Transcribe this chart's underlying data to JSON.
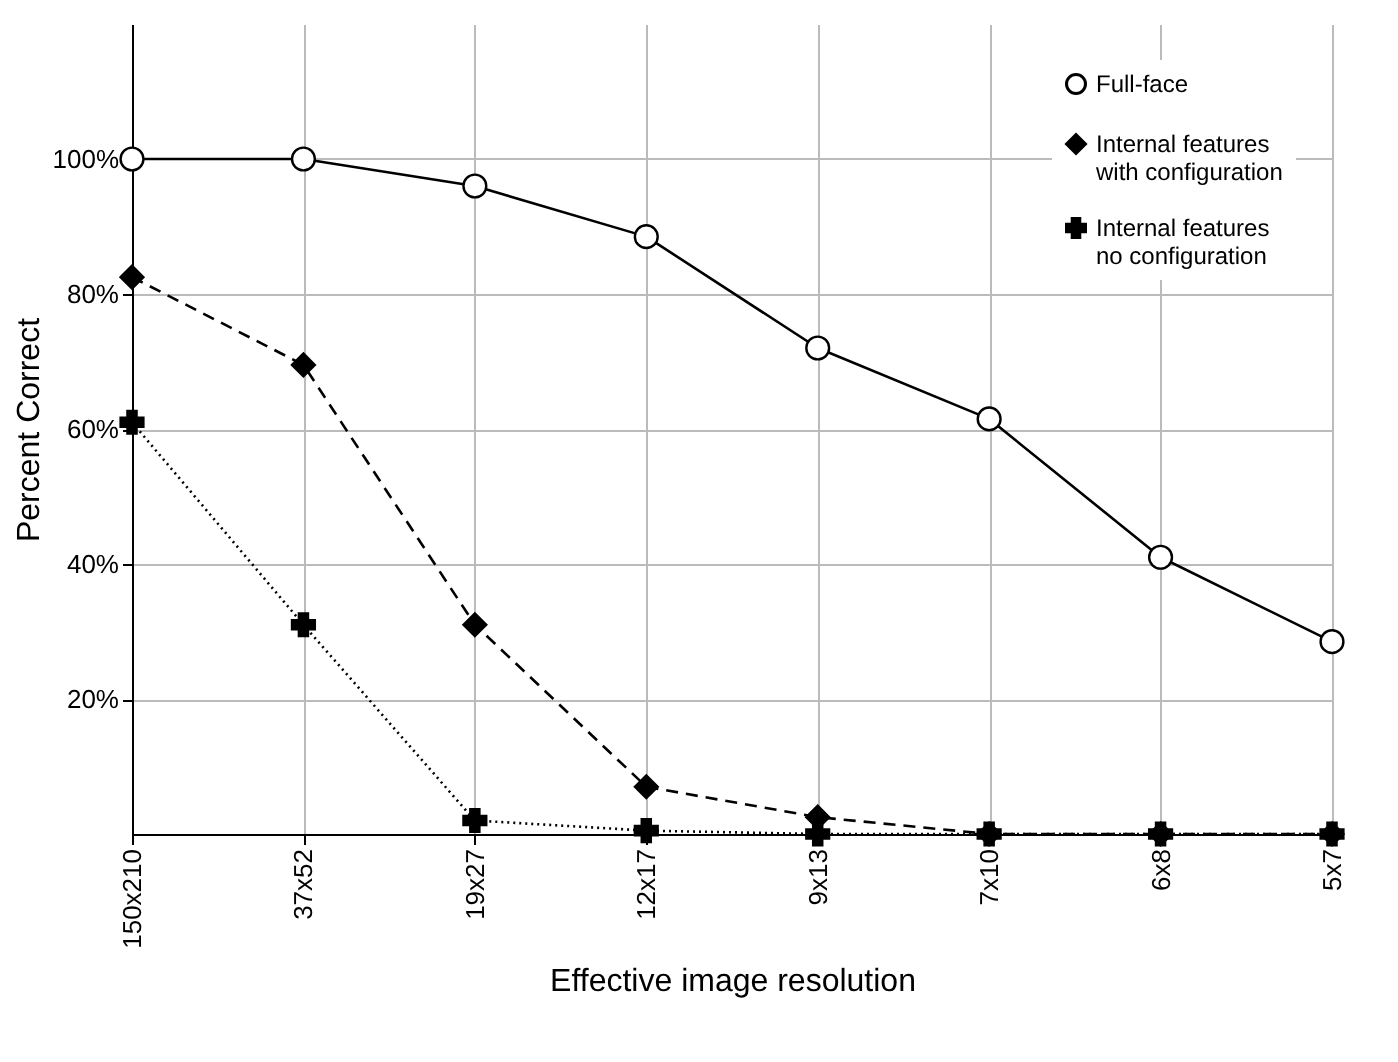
{
  "chart_data": {
    "type": "line",
    "xlabel": "Effective image resolution",
    "ylabel": "Percent Correct",
    "categories": [
      "150x210",
      "37x52",
      "19x27",
      "12x17",
      "9x13",
      "7x10",
      "6x8",
      "5x7"
    ],
    "series": [
      {
        "name": "Full-face",
        "color": "#000000",
        "marker": "circle",
        "line_style": "solid",
        "values": [
          100,
          100,
          96,
          88.5,
          72,
          61.5,
          41,
          28.5
        ]
      },
      {
        "name": "Internal features\nwith configuration",
        "color": "#000000",
        "marker": "diamond",
        "line_style": "dashed",
        "values": [
          82.5,
          69.5,
          31,
          7,
          2.5,
          0,
          0,
          0
        ]
      },
      {
        "name": "Internal features\nno configuration",
        "color": "#000000",
        "marker": "cross",
        "line_style": "dotted",
        "values": [
          61,
          31,
          2,
          0.5,
          0,
          0,
          0,
          0
        ]
      }
    ],
    "ylim": [
      0,
      120
    ],
    "yticks": [
      {
        "value": 20,
        "label": "20%"
      },
      {
        "value": 40,
        "label": "40%"
      },
      {
        "value": 60,
        "label": "60%"
      },
      {
        "value": 80,
        "label": "80%"
      },
      {
        "value": 100,
        "label": "100%"
      }
    ],
    "grid": true,
    "legend": "top right"
  }
}
